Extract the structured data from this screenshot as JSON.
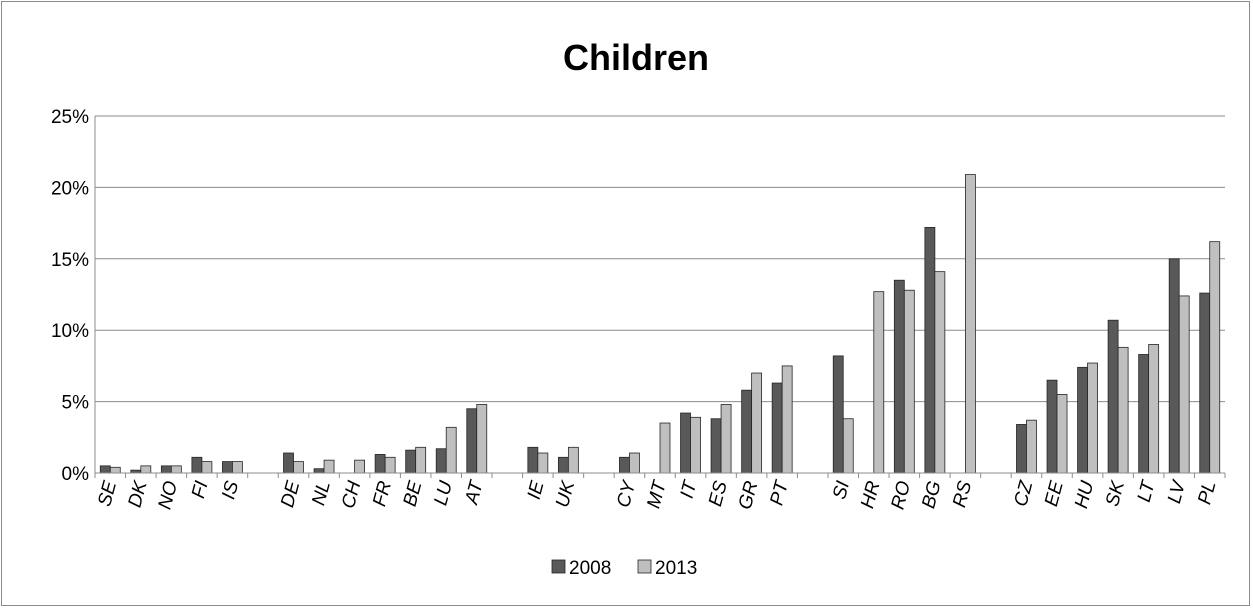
{
  "chart_data": {
    "type": "bar",
    "title": "Children",
    "xlabel": "",
    "ylabel": "",
    "ylim": [
      0,
      25
    ],
    "y_ticks": [
      "0%",
      "5%",
      "10%",
      "15%",
      "20%",
      "25%"
    ],
    "y_tick_values": [
      0,
      5,
      10,
      15,
      20,
      25
    ],
    "grid": true,
    "legend_position": "bottom",
    "categories": [
      "SE",
      "DK",
      "NO",
      "FI",
      "IS",
      "",
      "DE",
      "NL",
      "CH",
      "FR",
      "BE",
      "LU",
      "AT",
      "",
      "IE",
      "UK",
      "",
      "CY",
      "MT",
      "IT",
      "ES",
      "GR",
      "PT",
      "",
      "SI",
      "HR",
      "RO",
      "BG",
      "RS",
      "",
      "CZ",
      "EE",
      "HU",
      "SK",
      "LT",
      "LV",
      "PL"
    ],
    "series": [
      {
        "name": "2008",
        "color": "#595959",
        "values": [
          0.5,
          0.2,
          0.5,
          1.1,
          0.8,
          null,
          1.4,
          0.3,
          null,
          1.3,
          1.6,
          1.7,
          4.5,
          null,
          1.8,
          1.1,
          null,
          1.1,
          null,
          4.2,
          3.8,
          5.8,
          6.3,
          null,
          8.2,
          null,
          13.5,
          17.2,
          null,
          null,
          3.4,
          6.5,
          7.4,
          10.7,
          8.3,
          15.0,
          12.6
        ]
      },
      {
        "name": "2013",
        "color": "#bfbfbf",
        "values": [
          0.4,
          0.5,
          0.5,
          0.8,
          0.8,
          null,
          0.8,
          0.9,
          0.9,
          1.1,
          1.8,
          3.2,
          4.8,
          null,
          1.4,
          1.8,
          null,
          1.4,
          3.5,
          3.9,
          4.8,
          7.0,
          7.5,
          null,
          3.8,
          12.7,
          12.8,
          14.1,
          20.9,
          null,
          3.7,
          5.5,
          7.7,
          8.8,
          9.0,
          12.4,
          16.2
        ]
      }
    ]
  }
}
